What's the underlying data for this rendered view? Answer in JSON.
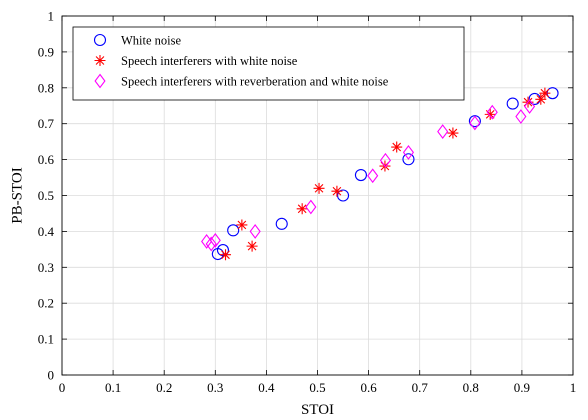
{
  "chart_data": {
    "type": "scatter",
    "title": "",
    "xlabel": "STOI",
    "ylabel": "PB-STOI",
    "xlim": [
      0,
      1
    ],
    "ylim": [
      0,
      1
    ],
    "xticks": [
      "0",
      "0.1",
      "0.2",
      "0.3",
      "0.4",
      "0.5",
      "0.6",
      "0.7",
      "0.8",
      "0.9",
      "1"
    ],
    "yticks": [
      "0",
      "0.1",
      "0.2",
      "0.3",
      "0.4",
      "0.5",
      "0.6",
      "0.7",
      "0.8",
      "0.9",
      "1"
    ],
    "grid": true,
    "legend_position": "top-left",
    "series": [
      {
        "name": "White noise",
        "marker": "circle",
        "color": "#0000ff",
        "points": [
          {
            "x": 0.305,
            "y": 0.337
          },
          {
            "x": 0.315,
            "y": 0.348
          },
          {
            "x": 0.335,
            "y": 0.403
          },
          {
            "x": 0.43,
            "y": 0.421
          },
          {
            "x": 0.55,
            "y": 0.5
          },
          {
            "x": 0.585,
            "y": 0.557
          },
          {
            "x": 0.678,
            "y": 0.601
          },
          {
            "x": 0.808,
            "y": 0.707
          },
          {
            "x": 0.882,
            "y": 0.756
          },
          {
            "x": 0.925,
            "y": 0.769
          },
          {
            "x": 0.96,
            "y": 0.785
          }
        ]
      },
      {
        "name": "Speech interferers with white noise",
        "marker": "asterisk",
        "color": "#ff0000",
        "points": [
          {
            "x": 0.32,
            "y": 0.335
          },
          {
            "x": 0.352,
            "y": 0.418
          },
          {
            "x": 0.372,
            "y": 0.359
          },
          {
            "x": 0.47,
            "y": 0.463
          },
          {
            "x": 0.503,
            "y": 0.52
          },
          {
            "x": 0.538,
            "y": 0.512
          },
          {
            "x": 0.632,
            "y": 0.582
          },
          {
            "x": 0.655,
            "y": 0.635
          },
          {
            "x": 0.765,
            "y": 0.674
          },
          {
            "x": 0.838,
            "y": 0.726
          },
          {
            "x": 0.912,
            "y": 0.76
          },
          {
            "x": 0.937,
            "y": 0.768
          },
          {
            "x": 0.945,
            "y": 0.785
          }
        ]
      },
      {
        "name": "Speech interferers with reverberation and white noise",
        "marker": "diamond",
        "color": "#ff00ff",
        "points": [
          {
            "x": 0.283,
            "y": 0.372
          },
          {
            "x": 0.292,
            "y": 0.365
          },
          {
            "x": 0.3,
            "y": 0.375
          },
          {
            "x": 0.378,
            "y": 0.4
          },
          {
            "x": 0.487,
            "y": 0.468
          },
          {
            "x": 0.608,
            "y": 0.555
          },
          {
            "x": 0.633,
            "y": 0.598
          },
          {
            "x": 0.678,
            "y": 0.62
          },
          {
            "x": 0.745,
            "y": 0.678
          },
          {
            "x": 0.808,
            "y": 0.702
          },
          {
            "x": 0.842,
            "y": 0.732
          },
          {
            "x": 0.898,
            "y": 0.72
          },
          {
            "x": 0.915,
            "y": 0.748
          }
        ]
      }
    ]
  }
}
